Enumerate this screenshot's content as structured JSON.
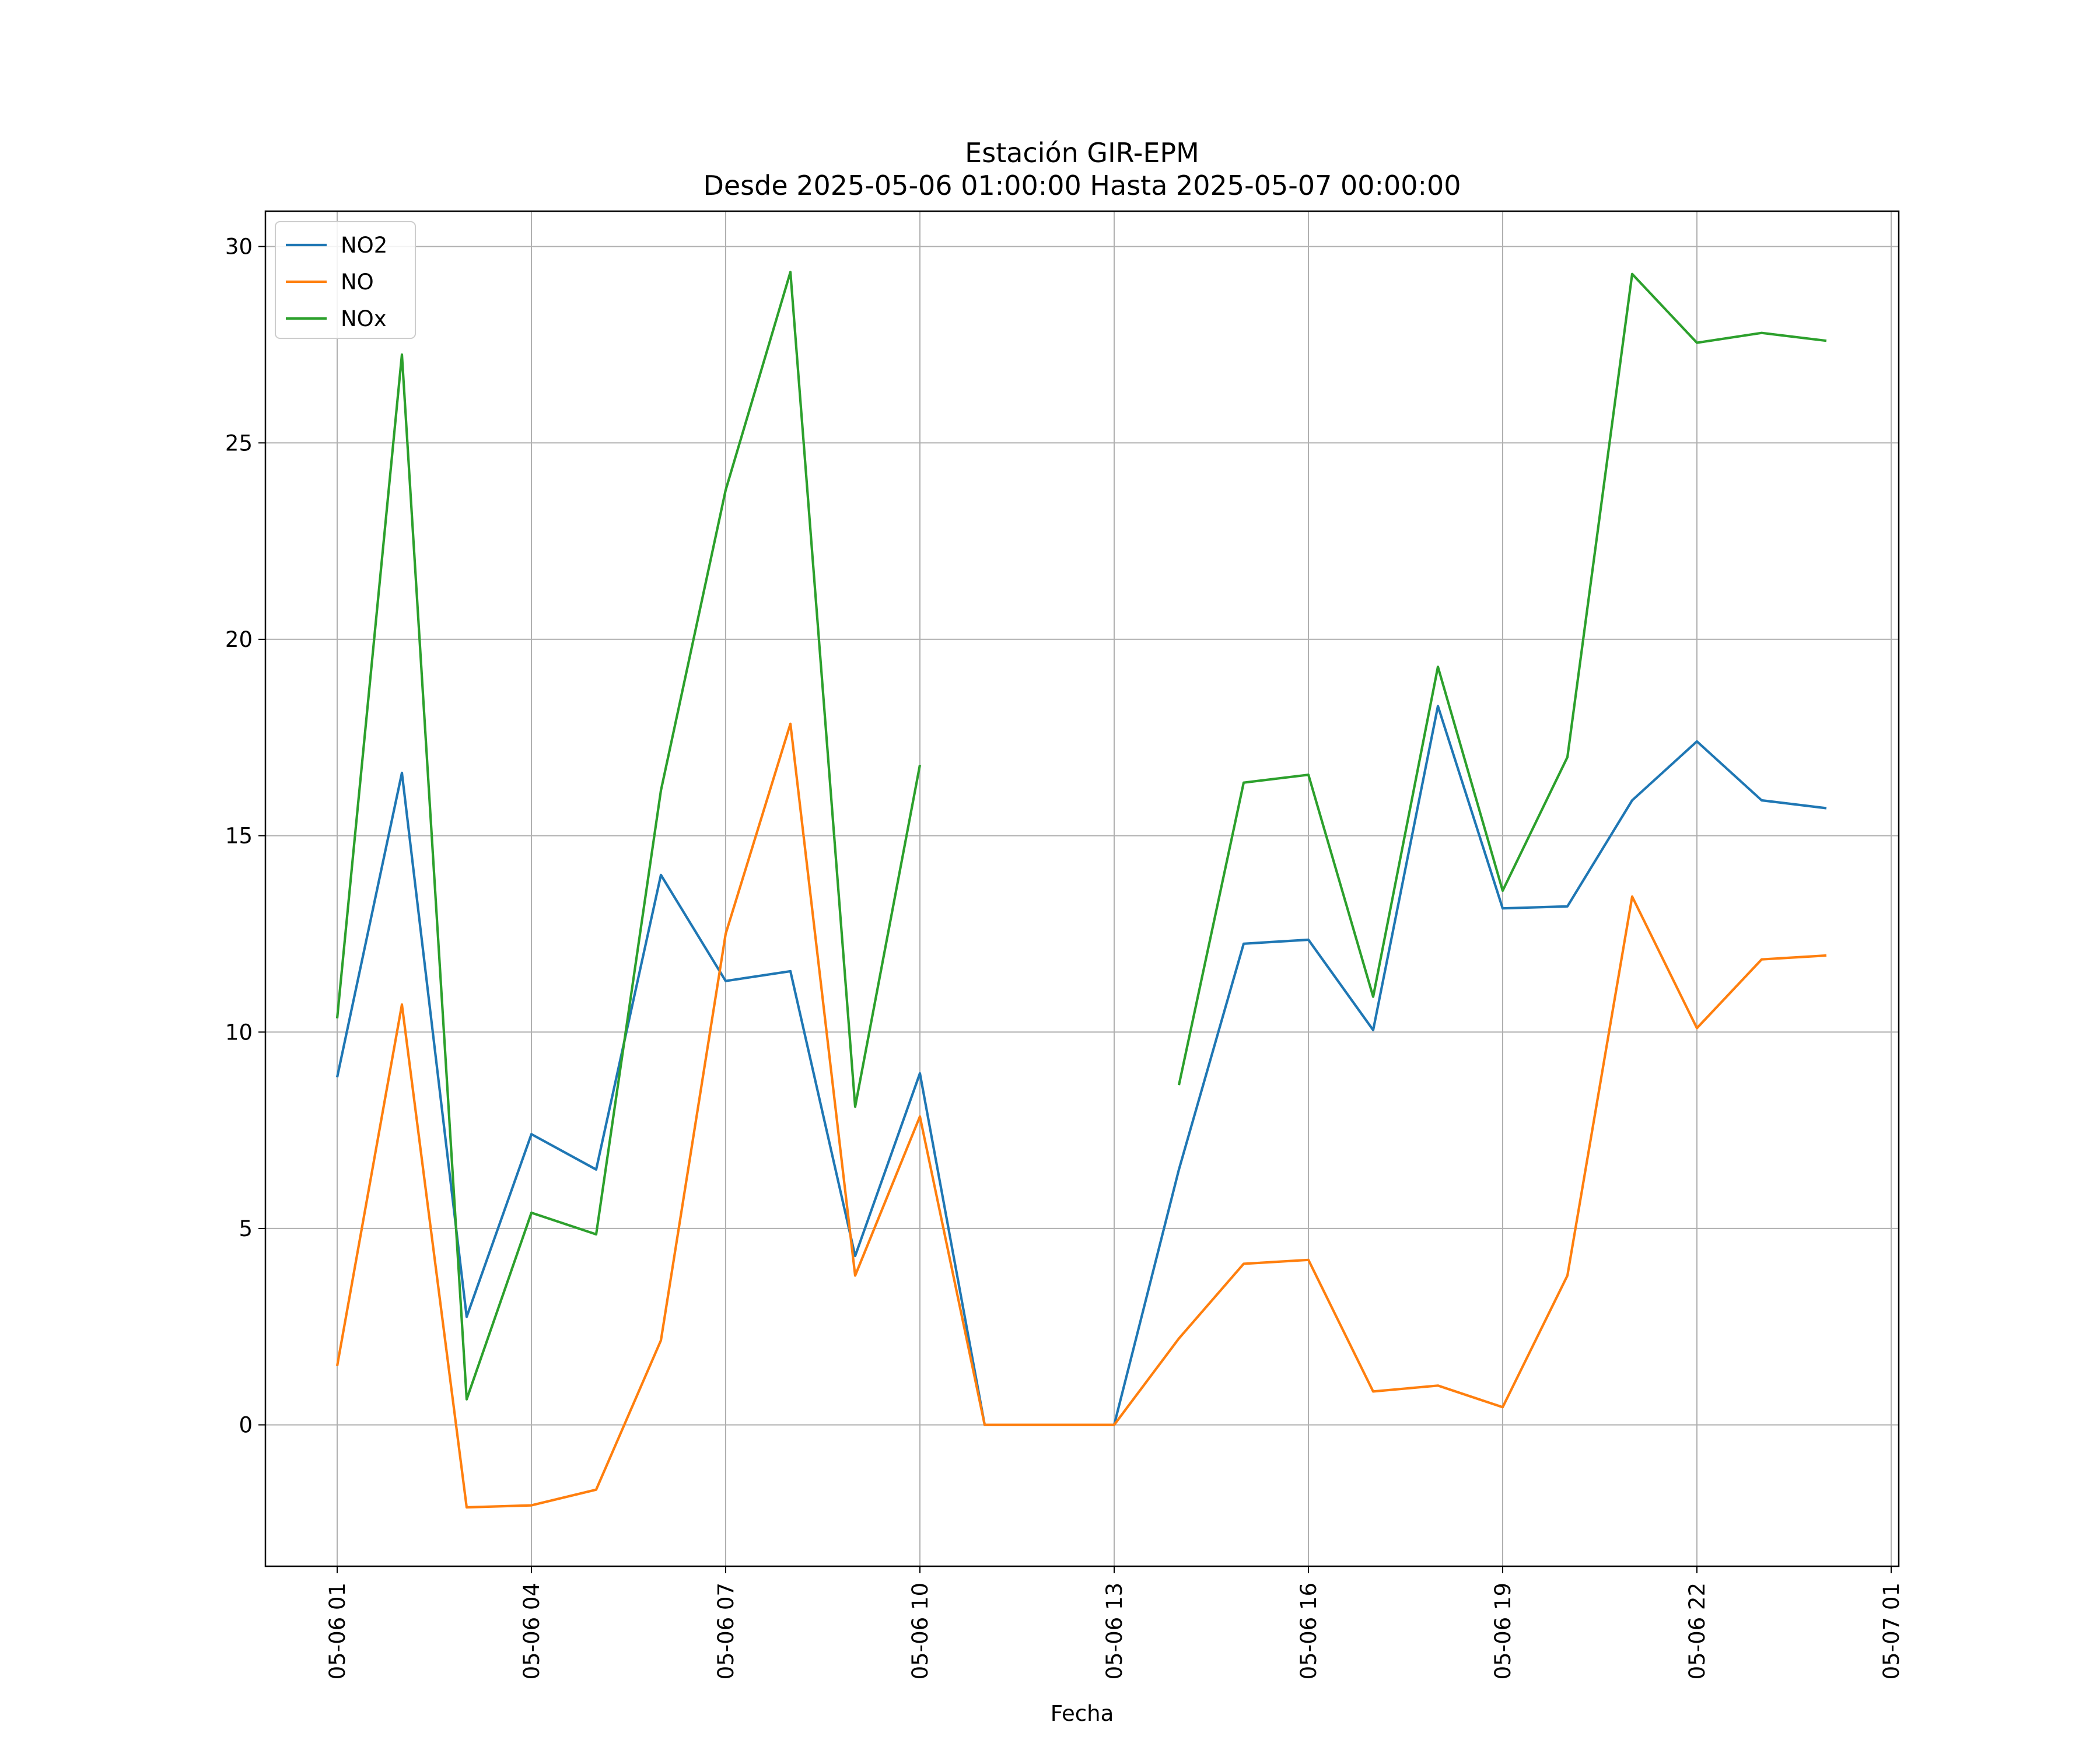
{
  "chart_data": {
    "type": "line",
    "title": "Estación GIR-EPM",
    "subtitle": "Desde 2025-05-06 01:00:00 Hasta 2025-05-07 00:00:00",
    "xlabel": "Fecha",
    "ylabel": "",
    "x": [
      "05-06 01",
      "05-06 02",
      "05-06 03",
      "05-06 04",
      "05-06 05",
      "05-06 06",
      "05-06 07",
      "05-06 08",
      "05-06 09",
      "05-06 10",
      "05-06 11",
      "05-06 12",
      "05-06 13",
      "05-06 14",
      "05-06 15",
      "05-06 16",
      "05-06 17",
      "05-06 18",
      "05-06 19",
      "05-06 20",
      "05-06 21",
      "05-06 22",
      "05-06 23",
      "05-07 00"
    ],
    "x_ticks": [
      "05-06 01",
      "05-06 04",
      "05-06 07",
      "05-06 10",
      "05-06 13",
      "05-06 16",
      "05-06 19",
      "05-06 22",
      "05-07 01"
    ],
    "ylim": [
      -3.6,
      30.9
    ],
    "y_ticks": [
      0,
      5,
      10,
      15,
      20,
      25,
      30
    ],
    "grid": true,
    "legend": "top-left",
    "series": [
      {
        "name": "NO2",
        "color": "#1f77b4",
        "values": [
          8.85,
          16.6,
          2.75,
          7.4,
          6.5,
          14.0,
          11.3,
          11.55,
          4.3,
          8.95,
          0.0,
          0.0,
          0.0,
          6.5,
          12.25,
          12.35,
          10.05,
          18.3,
          13.15,
          13.2,
          15.9,
          17.4,
          15.9,
          15.7
        ]
      },
      {
        "name": "NO",
        "color": "#ff7f0e",
        "values": [
          1.5,
          10.7,
          -2.1,
          -2.05,
          -1.65,
          2.15,
          12.5,
          17.85,
          3.8,
          7.85,
          0.0,
          0.0,
          0.0,
          2.2,
          4.1,
          4.2,
          0.85,
          1.0,
          0.45,
          3.8,
          13.45,
          10.1,
          11.85,
          11.95
        ]
      },
      {
        "name": "NOx",
        "color": "#2ca02c",
        "values": [
          10.35,
          27.25,
          0.65,
          5.4,
          4.85,
          16.15,
          23.8,
          29.35,
          8.1,
          16.8,
          null,
          null,
          null,
          8.65,
          16.35,
          16.55,
          10.9,
          19.3,
          13.6,
          17.0,
          29.3,
          27.55,
          27.8,
          27.6
        ]
      }
    ]
  }
}
